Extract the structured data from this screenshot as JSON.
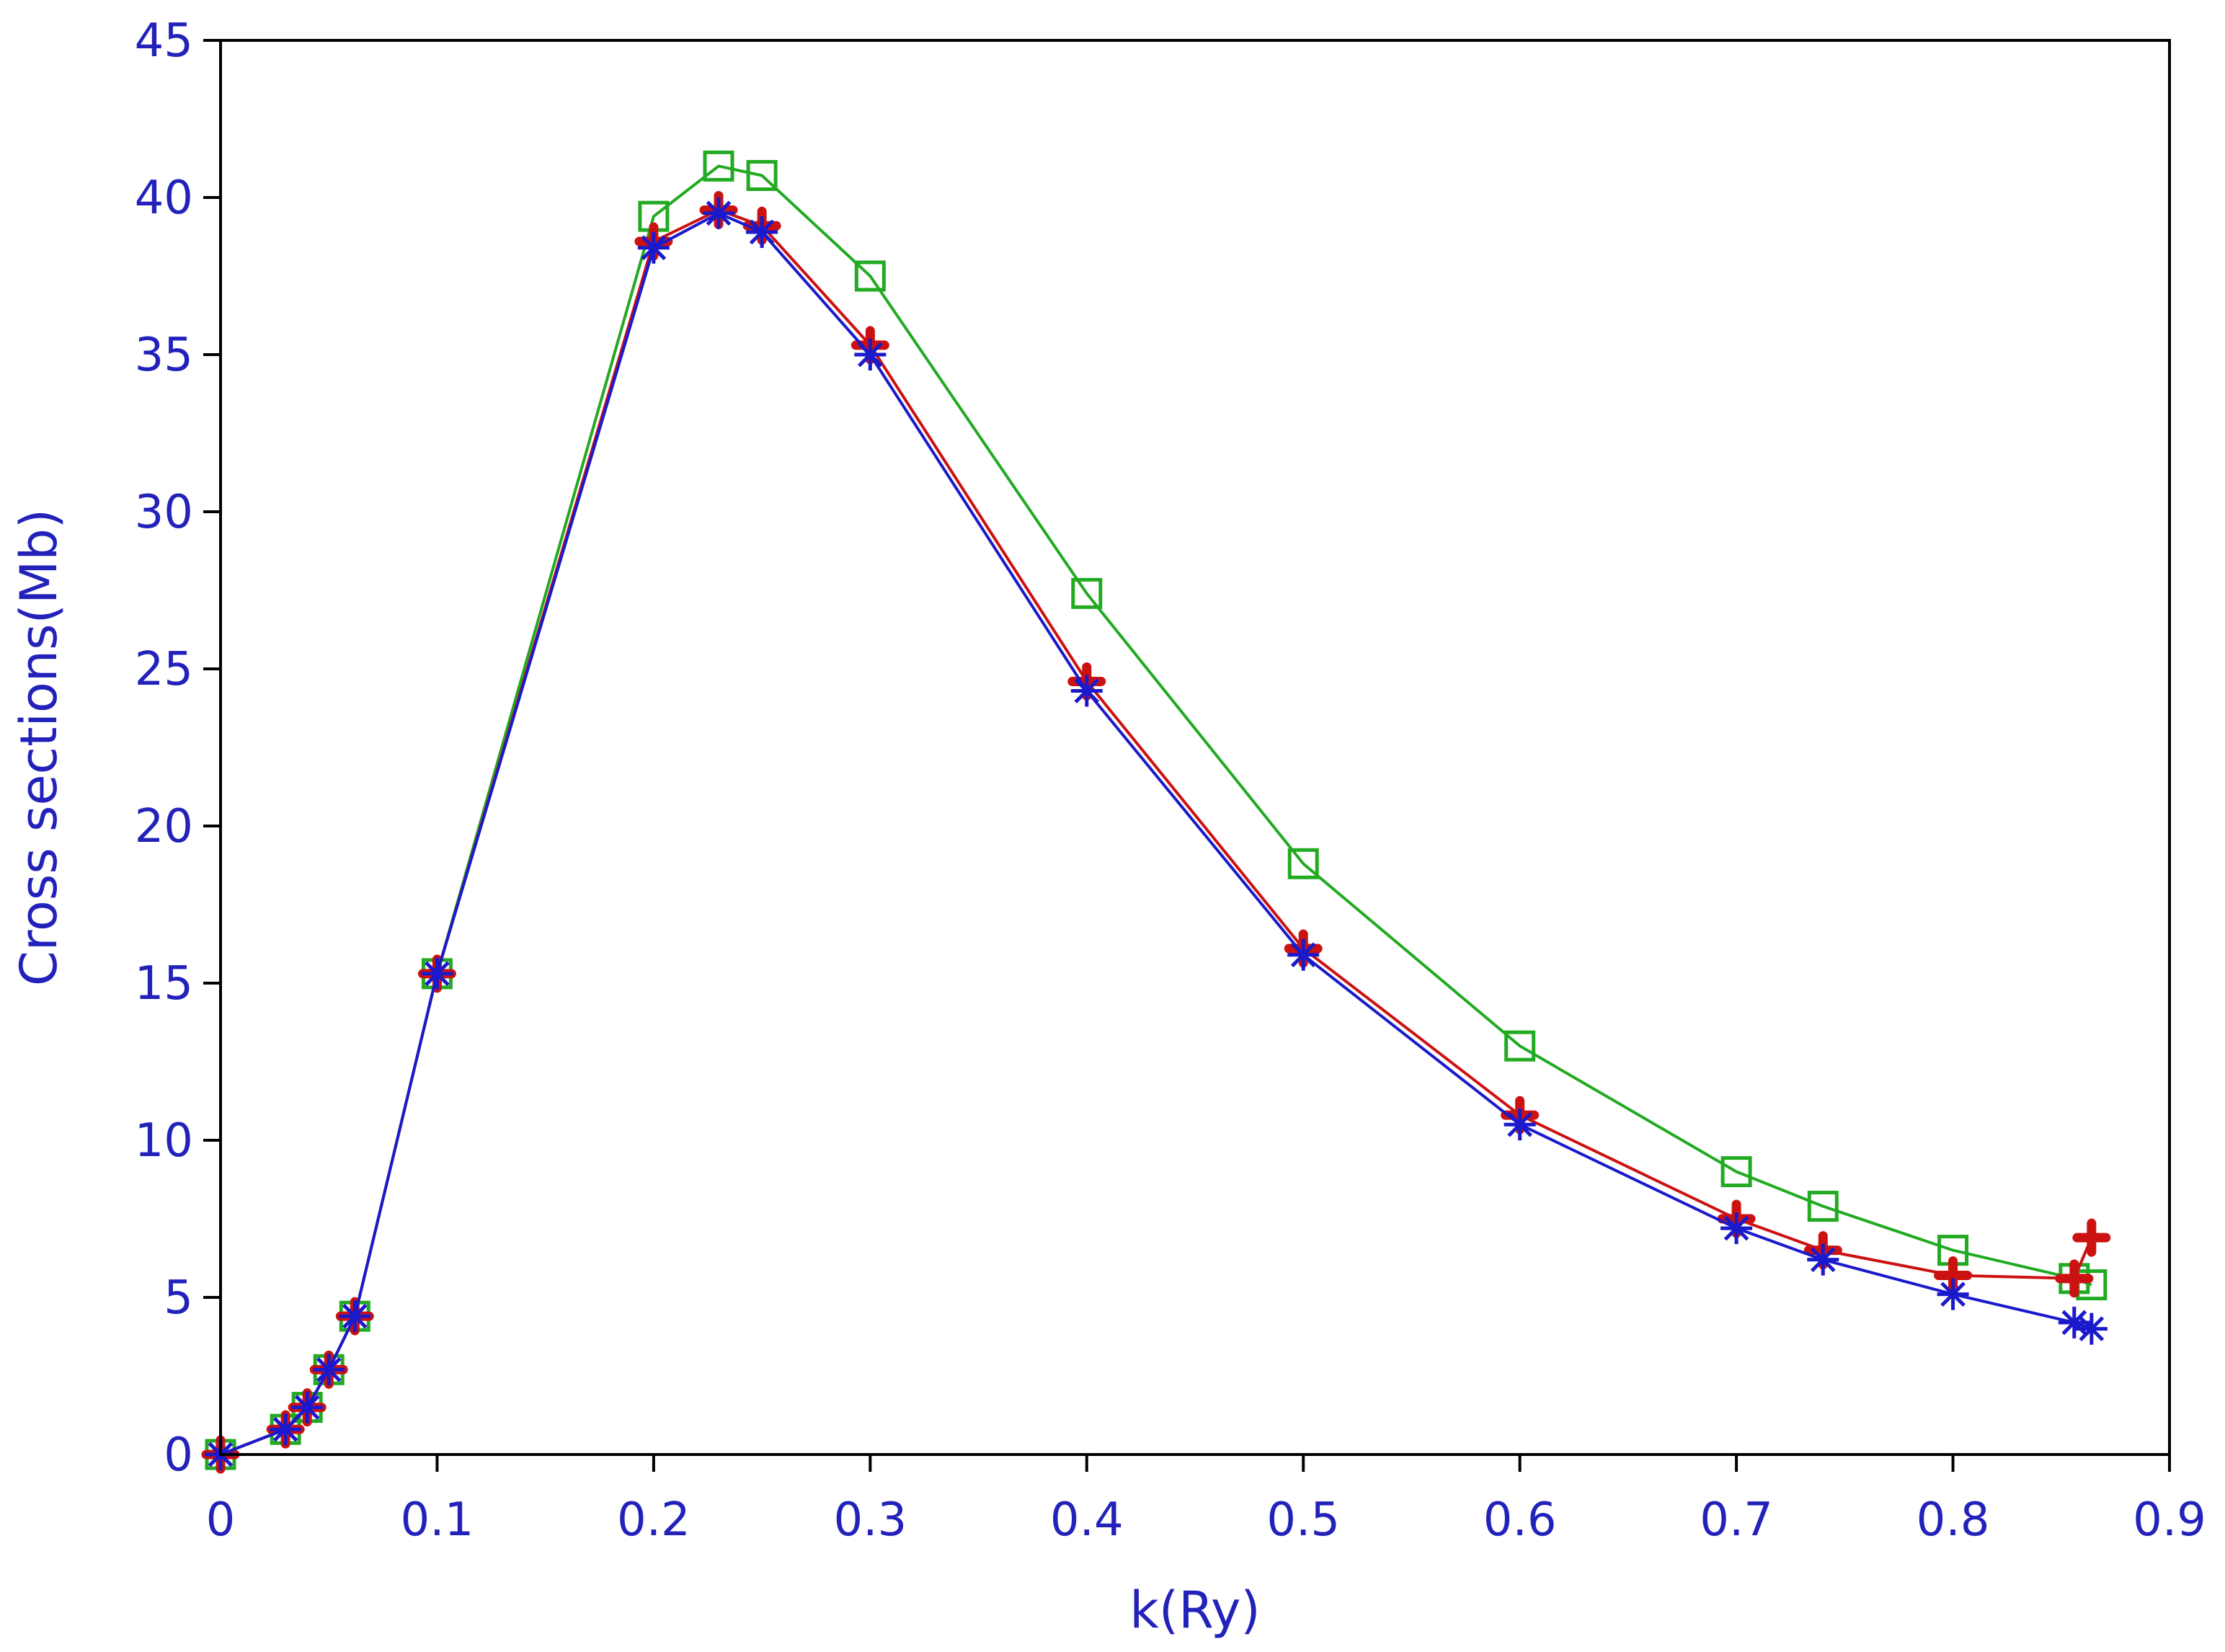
{
  "chart_data": {
    "type": "line",
    "title": "",
    "xlabel": "k(Ry)",
    "ylabel": "Cross sections(Mb)",
    "xlim": [
      0,
      0.9
    ],
    "ylim": [
      0,
      45
    ],
    "xticks": [
      "0",
      "0.1",
      "0.2",
      "0.3",
      "0.4",
      "0.5",
      "0.6",
      "0.7",
      "0.8",
      "0.9"
    ],
    "yticks": [
      "0",
      "5",
      "10",
      "15",
      "20",
      "25",
      "30",
      "35",
      "40",
      "45"
    ],
    "grid": false,
    "legend": "none",
    "series": [
      {
        "marker": "square",
        "color": "#22aa22",
        "x": [
          0,
          0.03,
          0.04,
          0.05,
          0.062,
          0.1,
          0.2,
          0.23,
          0.25,
          0.3,
          0.4,
          0.5,
          0.6,
          0.7,
          0.74,
          0.8,
          0.856,
          0.864
        ],
        "y": [
          0,
          0.8,
          1.5,
          2.7,
          4.4,
          15.3,
          39.4,
          41.0,
          40.7,
          37.5,
          27.4,
          18.8,
          13.0,
          9.0,
          7.9,
          6.5,
          5.6,
          5.4
        ]
      },
      {
        "marker": "plus",
        "color": "#cc1111",
        "x": [
          0,
          0.03,
          0.04,
          0.05,
          0.062,
          0.1,
          0.2,
          0.23,
          0.25,
          0.3,
          0.4,
          0.5,
          0.6,
          0.7,
          0.74,
          0.8,
          0.856,
          0.864
        ],
        "y": [
          0,
          0.8,
          1.5,
          2.7,
          4.4,
          15.3,
          38.6,
          39.6,
          39.1,
          35.3,
          24.6,
          16.1,
          10.8,
          7.5,
          6.5,
          5.7,
          5.6,
          6.9
        ]
      },
      {
        "marker": "asterisk",
        "color": "#1a1acc",
        "x": [
          0,
          0.03,
          0.04,
          0.05,
          0.062,
          0.1,
          0.2,
          0.23,
          0.25,
          0.3,
          0.4,
          0.5,
          0.6,
          0.7,
          0.74,
          0.8,
          0.856,
          0.864
        ],
        "y": [
          0,
          0.8,
          1.5,
          2.7,
          4.4,
          15.3,
          38.4,
          39.5,
          38.9,
          35.0,
          24.3,
          15.9,
          10.5,
          7.2,
          6.2,
          5.1,
          4.2,
          4.0
        ]
      }
    ]
  }
}
